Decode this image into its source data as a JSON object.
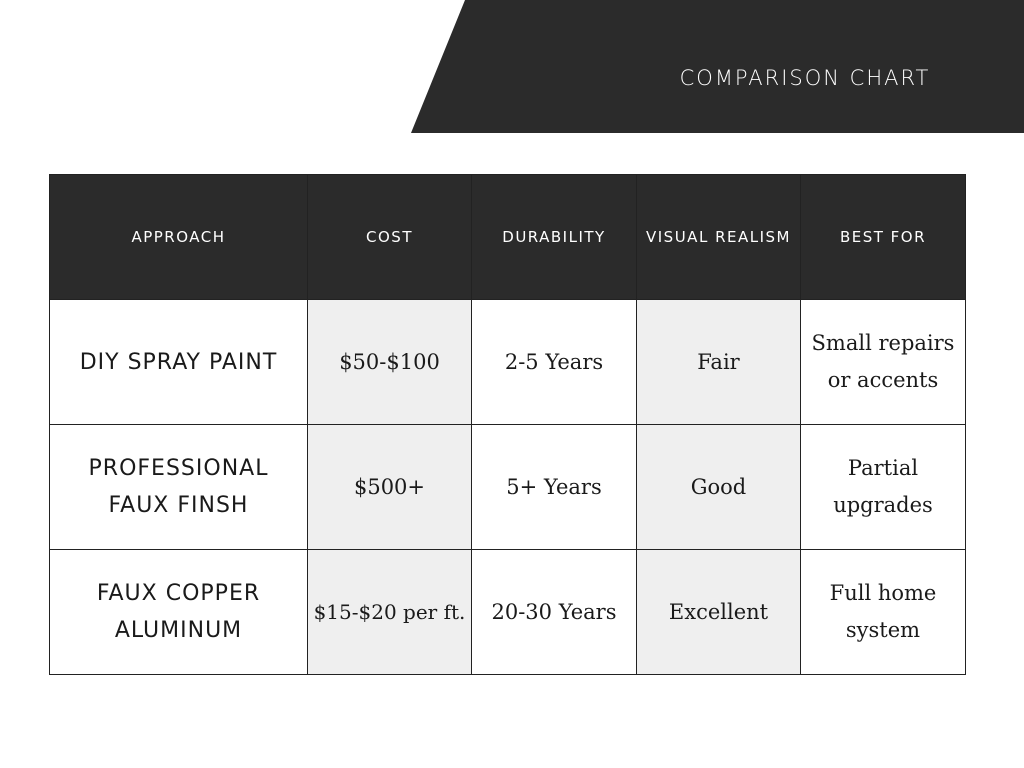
{
  "header": {
    "title": "COMPARISON CHART"
  },
  "colors": {
    "dark": "#2b2b2b",
    "shade": "#efefef"
  },
  "chart_data": {
    "type": "table",
    "title": "COMPARISON CHART",
    "columns": [
      "APPROACH",
      "COST",
      "DURABILITY",
      "VISUAL REALISM",
      "BEST FOR"
    ],
    "rows": [
      [
        "DIY SPRAY PAINT",
        "$50-$100",
        "2-5 Years",
        "Fair",
        "Small repairs or accents"
      ],
      [
        "PROFESSIONAL FAUX FINSH",
        "$500+",
        "5+ Years",
        "Good",
        "Partial upgrades"
      ],
      [
        "FAUX COPPER ALUMINUM",
        "$15-$20 per ft.",
        "20-30 Years",
        "Excellent",
        "Full home system"
      ]
    ]
  }
}
